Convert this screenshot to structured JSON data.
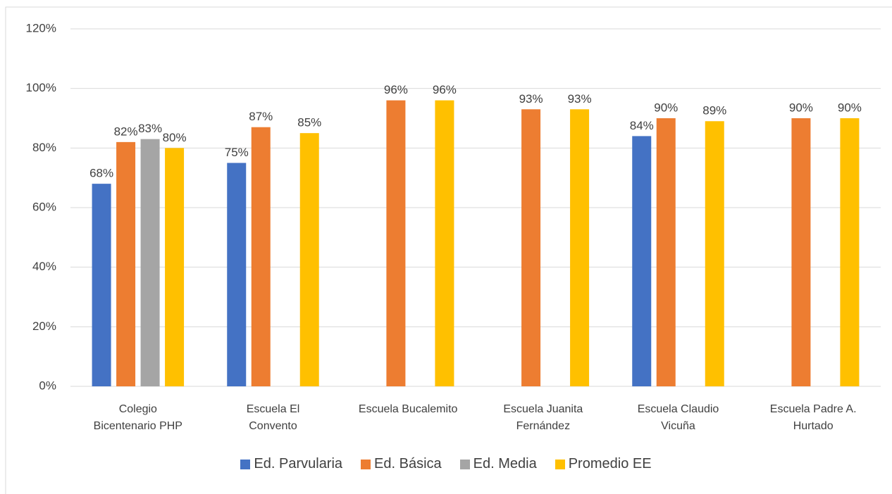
{
  "chart_data": {
    "type": "bar",
    "categories": [
      "Colegio Bicentenario PHP",
      "Escuela El Convento",
      "Escuela Bucalemito",
      "Escuela Juanita Fernández",
      "Escuela Claudio Vicuña",
      "Escuela Padre A. Hurtado"
    ],
    "series": [
      {
        "name": "Ed. Parvularia",
        "color": "#4472c4",
        "values": [
          68,
          75,
          null,
          null,
          84,
          null
        ],
        "value_labels": [
          "68%",
          "75%",
          null,
          null,
          "84%",
          null
        ]
      },
      {
        "name": "Ed. Básica",
        "color": "#ed7d31",
        "values": [
          82,
          87,
          96,
          93,
          90,
          90
        ],
        "value_labels": [
          "82%",
          "87%",
          "96%",
          "93%",
          "90%",
          "90%"
        ]
      },
      {
        "name": "Ed. Media",
        "color": "#a5a5a5",
        "values": [
          83,
          null,
          null,
          null,
          null,
          null
        ],
        "value_labels": [
          "83%",
          null,
          null,
          null,
          null,
          null
        ]
      },
      {
        "name": "Promedio EE",
        "color": "#ffc000",
        "values": [
          80,
          85,
          96,
          93,
          89,
          90
        ],
        "value_labels": [
          "80%",
          "85%",
          "96%",
          "93%",
          "89%",
          "90%"
        ]
      }
    ],
    "ylim": [
      0,
      120
    ],
    "yticks": [
      {
        "value": 0,
        "label": "0%"
      },
      {
        "value": 20,
        "label": "20%"
      },
      {
        "value": 40,
        "label": "40%"
      },
      {
        "value": 60,
        "label": "60%"
      },
      {
        "value": 80,
        "label": "80%"
      },
      {
        "value": 100,
        "label": "100%"
      },
      {
        "value": 120,
        "label": "120%"
      }
    ],
    "grid": true,
    "legend": "bottom"
  }
}
